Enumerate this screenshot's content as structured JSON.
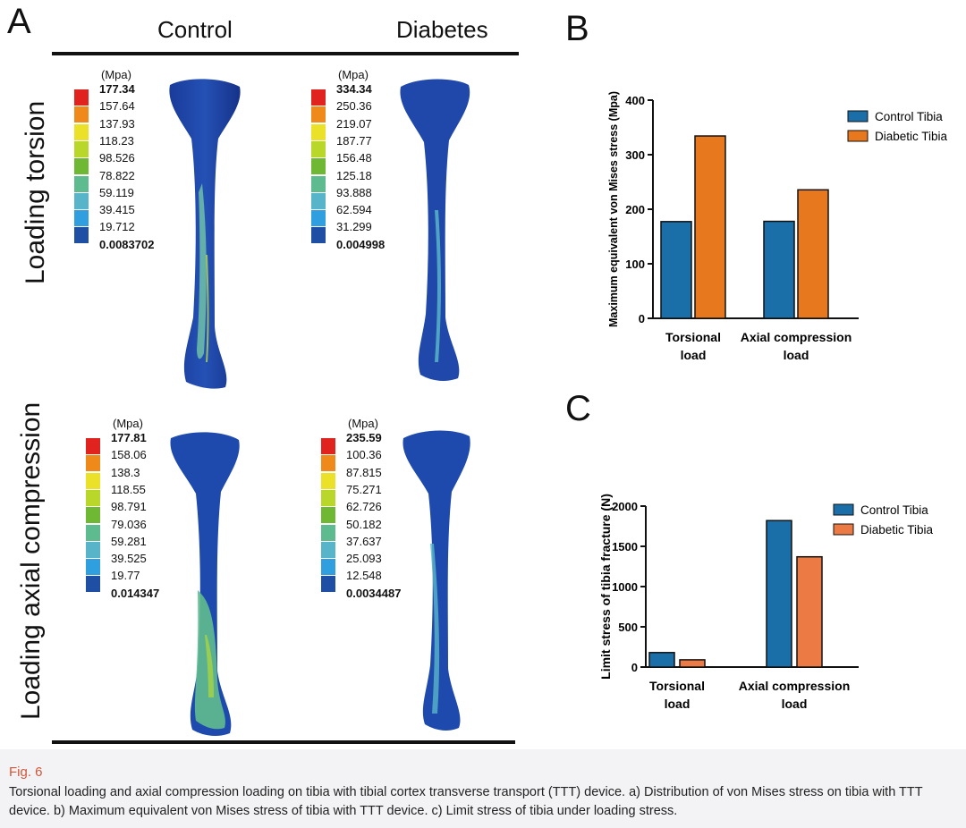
{
  "panelA": {
    "letter": "A",
    "col_control": "Control",
    "col_diabetes": "Diabetes",
    "row_torsion": "Loading torsion",
    "row_axial": "Loading axial compression",
    "unit": "(Mpa)",
    "colors": [
      "#e1231f",
      "#ef8a1a",
      "#ece129",
      "#b9d62a",
      "#6fb833",
      "#5dbb8f",
      "#58b5c9",
      "#2f9fdf",
      "#1e4fa5"
    ],
    "scales": {
      "torsion_control": [
        "177.34",
        "157.64",
        "137.93",
        "118.23",
        "98.526",
        "78.822",
        "59.119",
        "39.415",
        "19.712",
        "0.0083702"
      ],
      "torsion_diabetes": [
        "334.34",
        "250.36",
        "219.07",
        "187.77",
        "156.48",
        "125.18",
        "93.888",
        "62.594",
        "31.299",
        "0.004998"
      ],
      "axial_control": [
        "177.81",
        "158.06",
        "138.3",
        "118.55",
        "98.791",
        "79.036",
        "59.281",
        "39.525",
        "19.77",
        "0.014347"
      ],
      "axial_diabetes": [
        "235.59",
        "100.36",
        "87.815",
        "75.271",
        "62.726",
        "50.182",
        "37.637",
        "25.093",
        "12.548",
        "0.0034487"
      ]
    }
  },
  "panelB": {
    "letter": "B",
    "chart_data": {
      "type": "bar",
      "categories": [
        "Torsional load",
        "Axial compression load"
      ],
      "category_lines": [
        [
          "Torsional",
          "load"
        ],
        [
          "Axial compression",
          "load"
        ]
      ],
      "series": [
        {
          "name": "Control Tibia",
          "values": [
            177.34,
            177.81
          ],
          "color": "#1a6fa8"
        },
        {
          "name": "Diabetic Tibia",
          "values": [
            334.34,
            235.59
          ],
          "color": "#e8781d"
        }
      ],
      "ylabel": "Maximum equivalent von Mises stress (Mpa)",
      "ylim": [
        0,
        400
      ],
      "yticks": [
        0,
        100,
        200,
        300,
        400
      ],
      "legend": "top-right",
      "grid": false
    }
  },
  "panelC": {
    "letter": "C",
    "chart_data": {
      "type": "bar",
      "categories": [
        "Torsional load",
        "Axial compression load"
      ],
      "category_lines": [
        [
          "Torsional",
          "load"
        ],
        [
          "Axial compression",
          "load"
        ]
      ],
      "series": [
        {
          "name": "Control Tibia",
          "values": [
            180,
            1820
          ],
          "color": "#1a6fa8"
        },
        {
          "name": "Diabetic Tibia",
          "values": [
            90,
            1370
          ],
          "color": "#ec7a45"
        }
      ],
      "ylabel": "Limit stress of  tibia fracture (N)",
      "ylim": [
        0,
        2000
      ],
      "yticks": [
        0,
        500,
        1000,
        1500,
        2000
      ],
      "legend": "top-right",
      "grid": false
    }
  },
  "caption": {
    "fig_label": "Fig. 6",
    "text": "Torsional loading and axial compression loading on tibia with tibial cortex transverse transport (TTT) device. a) Distribution of von Mises stress on tibia with TTT device. b) Maximum equivalent von Mises stress of tibia with TTT device. c) Limit stress of tibia under loading stress."
  }
}
